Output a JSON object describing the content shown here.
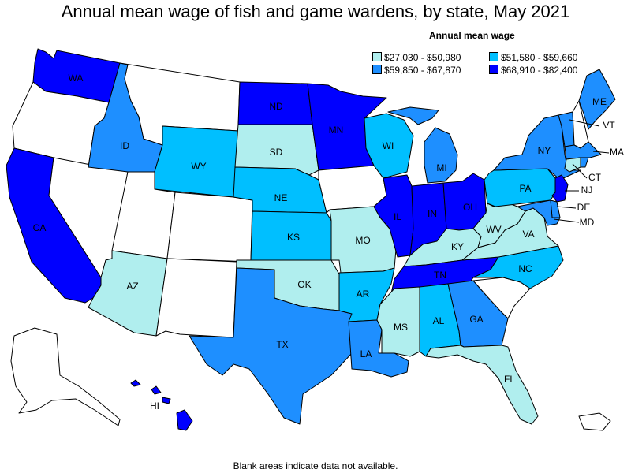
{
  "title": "Annual mean wage of fish and game wardens, by state, May 2021",
  "legend": {
    "title": "Annual mean wage",
    "items": [
      {
        "label": "$27,030 - $50,980",
        "color": "#b0eeee"
      },
      {
        "label": "$51,580 - $59,660",
        "color": "#00bfff"
      },
      {
        "label": "$59,850 - $67,870",
        "color": "#1e8fff"
      },
      {
        "label": "$68,910 - $82,400",
        "color": "#0000ff"
      }
    ]
  },
  "states": [
    {
      "abbr": "WA",
      "tier": 4
    },
    {
      "abbr": "OR",
      "tier": 0
    },
    {
      "abbr": "CA",
      "tier": 4
    },
    {
      "abbr": "NV",
      "tier": 0
    },
    {
      "abbr": "ID",
      "tier": 3
    },
    {
      "abbr": "MT",
      "tier": 0
    },
    {
      "abbr": "WY",
      "tier": 2
    },
    {
      "abbr": "UT",
      "tier": 0
    },
    {
      "abbr": "AZ",
      "tier": 1
    },
    {
      "abbr": "CO",
      "tier": 0
    },
    {
      "abbr": "NM",
      "tier": 0
    },
    {
      "abbr": "ND",
      "tier": 4
    },
    {
      "abbr": "SD",
      "tier": 1
    },
    {
      "abbr": "NE",
      "tier": 2
    },
    {
      "abbr": "KS",
      "tier": 2
    },
    {
      "abbr": "OK",
      "tier": 1
    },
    {
      "abbr": "TX",
      "tier": 3
    },
    {
      "abbr": "MN",
      "tier": 4
    },
    {
      "abbr": "IA",
      "tier": 0
    },
    {
      "abbr": "MO",
      "tier": 1
    },
    {
      "abbr": "AR",
      "tier": 2
    },
    {
      "abbr": "LA",
      "tier": 3
    },
    {
      "abbr": "WI",
      "tier": 2
    },
    {
      "abbr": "IL",
      "tier": 4
    },
    {
      "abbr": "MI",
      "tier": 3
    },
    {
      "abbr": "IN",
      "tier": 4
    },
    {
      "abbr": "OH",
      "tier": 4
    },
    {
      "abbr": "KY",
      "tier": 1
    },
    {
      "abbr": "TN",
      "tier": 4
    },
    {
      "abbr": "MS",
      "tier": 1
    },
    {
      "abbr": "AL",
      "tier": 2
    },
    {
      "abbr": "GA",
      "tier": 3
    },
    {
      "abbr": "FL",
      "tier": 1
    },
    {
      "abbr": "SC",
      "tier": 0
    },
    {
      "abbr": "NC",
      "tier": 2
    },
    {
      "abbr": "VA",
      "tier": 1
    },
    {
      "abbr": "WV",
      "tier": 1
    },
    {
      "abbr": "PA",
      "tier": 2
    },
    {
      "abbr": "NY",
      "tier": 3
    },
    {
      "abbr": "VT",
      "tier": 3
    },
    {
      "abbr": "NH",
      "tier": 0
    },
    {
      "abbr": "ME",
      "tier": 3
    },
    {
      "abbr": "MA",
      "tier": 3
    },
    {
      "abbr": "RI",
      "tier": 3
    },
    {
      "abbr": "CT",
      "tier": 1
    },
    {
      "abbr": "NJ",
      "tier": 4
    },
    {
      "abbr": "DE",
      "tier": 3
    },
    {
      "abbr": "MD",
      "tier": 3
    },
    {
      "abbr": "AK",
      "tier": 0
    },
    {
      "abbr": "HI",
      "tier": 4
    },
    {
      "abbr": "PR",
      "tier": 0
    }
  ],
  "footnote": "Blank areas indicate data not available."
}
